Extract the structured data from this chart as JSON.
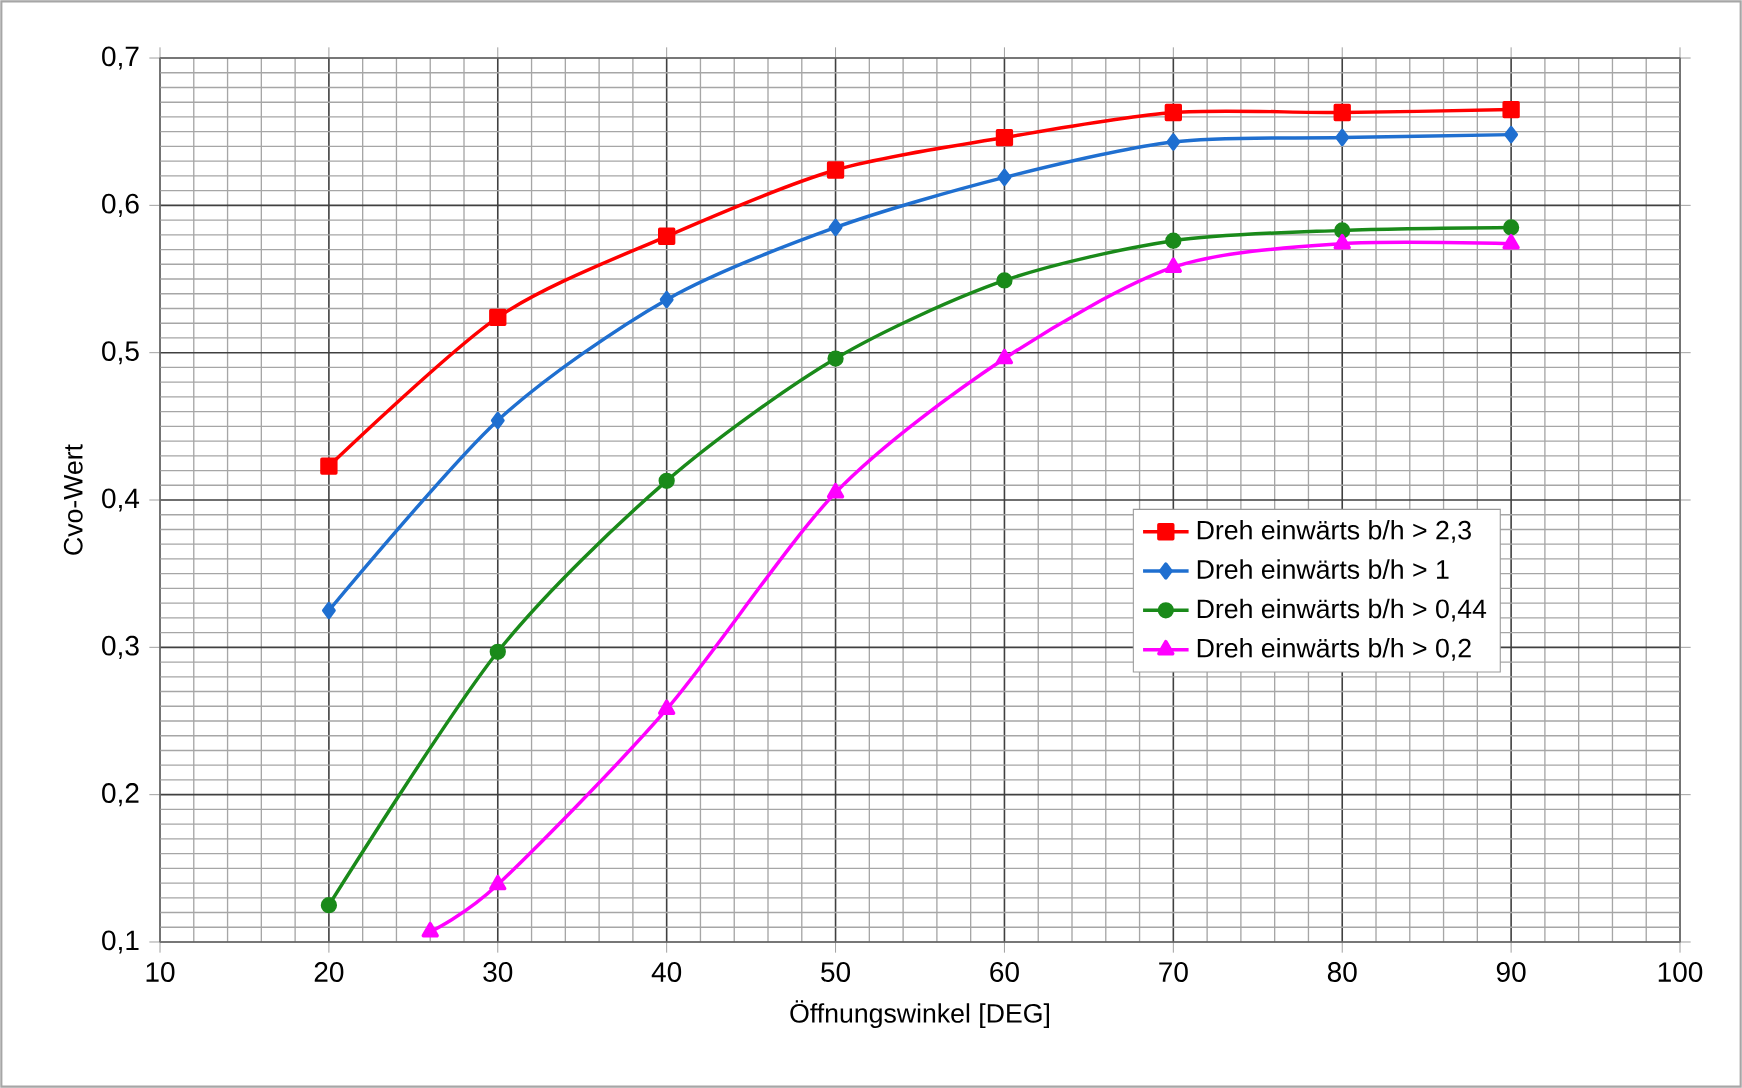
{
  "chart_data": {
    "type": "line",
    "xlabel": "Öffnungswinkel [DEG]",
    "ylabel": "Cvo-Wert",
    "xlim": [
      10,
      100
    ],
    "xticks": [
      10,
      20,
      30,
      40,
      50,
      60,
      70,
      80,
      90,
      100
    ],
    "ylim": [
      0.1,
      0.7
    ],
    "yticks": [
      {
        "value": 0.1,
        "label": "0,1"
      },
      {
        "value": 0.2,
        "label": "0,2"
      },
      {
        "value": 0.3,
        "label": "0,3"
      },
      {
        "value": 0.4,
        "label": "0,4"
      },
      {
        "value": 0.5,
        "label": "0,5"
      },
      {
        "value": 0.6,
        "label": "0,6"
      },
      {
        "value": 0.7,
        "label": "0,7"
      }
    ],
    "grid": true,
    "legend": "right",
    "series": [
      {
        "name": "Dreh einwärts b/h > 2,3",
        "color": "#ff0000",
        "marker": "square",
        "x": [
          20,
          30,
          40,
          50,
          60,
          70,
          80,
          90
        ],
        "values": [
          0.423,
          0.524,
          0.579,
          0.624,
          0.646,
          0.663,
          0.663,
          0.665
        ]
      },
      {
        "name": "Dreh einwärts b/h > 1",
        "color": "#1f6fd0",
        "marker": "diamond",
        "x": [
          20,
          30,
          40,
          50,
          60,
          70,
          80,
          90
        ],
        "values": [
          0.325,
          0.454,
          0.536,
          0.585,
          0.619,
          0.643,
          0.646,
          0.648
        ]
      },
      {
        "name": "Dreh einwärts b/h > 0,44",
        "color": "#1a8a1a",
        "marker": "circle",
        "x": [
          20,
          30,
          40,
          50,
          60,
          70,
          80,
          90
        ],
        "values": [
          0.125,
          0.297,
          0.413,
          0.496,
          0.549,
          0.576,
          0.583,
          0.585
        ]
      },
      {
        "name": "Dreh einwärts b/h > 0,2",
        "color": "#ff00ff",
        "marker": "triangle",
        "x": [
          26,
          30,
          40,
          50,
          60,
          70,
          80,
          90
        ],
        "values": [
          0.107,
          0.139,
          0.258,
          0.405,
          0.496,
          0.558,
          0.574,
          0.574
        ]
      }
    ]
  }
}
